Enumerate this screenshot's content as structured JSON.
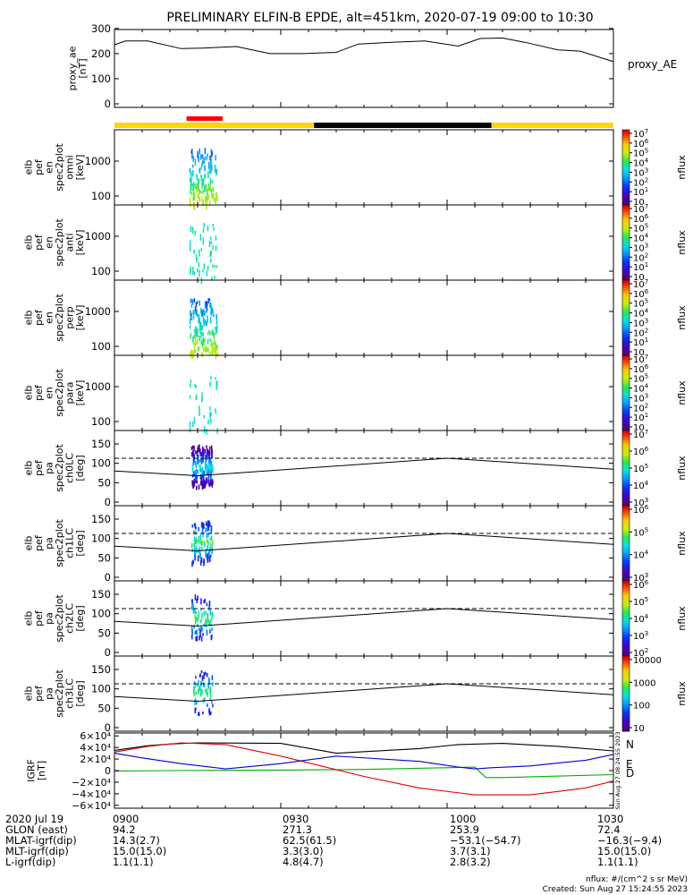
{
  "title": "PRELIMINARY ELFIN-B EPDE, alt=451km, 2020-07-19 09:00 to 10:30",
  "chart_data": [
    {
      "type": "line",
      "panel": "proxy_ae",
      "ylabel": "proxy_ae [nT]",
      "legend": "proxy_AE",
      "ylim": [
        0,
        310
      ],
      "yticks": [
        "0",
        "100",
        "200",
        "300"
      ],
      "x_minutes": [
        0,
        2,
        6,
        12,
        16,
        22,
        28,
        34,
        40,
        44,
        50,
        56,
        62,
        66,
        70,
        74,
        80,
        84,
        90
      ],
      "values": [
        235,
        250,
        250,
        220,
        222,
        228,
        200,
        200,
        205,
        238,
        245,
        250,
        230,
        260,
        262,
        245,
        215,
        210,
        168
      ]
    },
    {
      "type": "bar",
      "panel": "status_bar",
      "segments": [
        {
          "start": 0,
          "end": 36,
          "color": "#ffd700"
        },
        {
          "start": 36,
          "end": 68,
          "color": "#000000"
        },
        {
          "start": 68,
          "end": 90,
          "color": "#ffd700"
        }
      ],
      "marker": {
        "start": 13,
        "end": 19.5,
        "color": "#ff0000"
      }
    },
    {
      "type": "heatmap",
      "panel": "spec-omni",
      "ylabel": [
        "elb",
        "pef",
        "en",
        "spec2plot",
        "omni",
        "[keV]"
      ],
      "yticks": [
        "100",
        "1000"
      ],
      "scale": "log",
      "colorbar": {
        "label": "nflux",
        "ticks": [
          "10",
          "10^1",
          "10^2",
          "10^3",
          "10^4",
          "10^5",
          "10^6",
          "10^7"
        ]
      },
      "active_interval_minutes": [
        13.5,
        18.5
      ]
    },
    {
      "type": "heatmap",
      "panel": "spec-anti",
      "ylabel": [
        "elb",
        "pef",
        "en",
        "spec2plot",
        "anti",
        "[keV]"
      ],
      "yticks": [
        "100",
        "1000"
      ],
      "scale": "log",
      "colorbar": {
        "label": "nflux",
        "ticks": [
          "10",
          "10^1",
          "10^2",
          "10^3",
          "10^4",
          "10^5",
          "10^6",
          "10^7"
        ]
      },
      "active_interval_minutes": [
        13.5,
        18.5
      ]
    },
    {
      "type": "heatmap",
      "panel": "spec-perp",
      "ylabel": [
        "elb",
        "pef",
        "en",
        "spec2plot",
        "perp",
        "[keV]"
      ],
      "yticks": [
        "100",
        "1000"
      ],
      "scale": "log",
      "colorbar": {
        "label": "nflux",
        "ticks": [
          "10",
          "10^1",
          "10^2",
          "10^3",
          "10^4",
          "10^5",
          "10^6",
          "10^7"
        ]
      },
      "active_interval_minutes": [
        13.5,
        18.5
      ]
    },
    {
      "type": "heatmap",
      "panel": "spec-para",
      "ylabel": [
        "elb",
        "pef",
        "en",
        "spec2plot",
        "para",
        "[keV]"
      ],
      "yticks": [
        "100",
        "1000"
      ],
      "scale": "log",
      "colorbar": {
        "label": "nflux",
        "ticks": [
          "10",
          "10^1",
          "10^2",
          "10^3",
          "10^4",
          "10^5",
          "10^6",
          "10^7"
        ]
      },
      "active_interval_minutes": [
        13.5,
        18.5
      ]
    },
    {
      "type": "heatmap",
      "panel": "pa-ch0",
      "ylabel": [
        "elb",
        "pef",
        "pa",
        "spec2plot",
        "ch0LC",
        "[deg]"
      ],
      "yticks": [
        "0",
        "50",
        "100",
        "150"
      ],
      "ylim": [
        0,
        180
      ],
      "colorbar": {
        "label": "nflux",
        "ticks": [
          "10^3",
          "10^4",
          "10^5",
          "10^6",
          "10^7"
        ]
      },
      "lc_dashed": 113,
      "lc_solid": [
        {
          "x": 0,
          "y": 80
        },
        {
          "x": 15,
          "y": 68
        },
        {
          "x": 60,
          "y": 113
        },
        {
          "x": 90,
          "y": 85
        }
      ]
    },
    {
      "type": "heatmap",
      "panel": "pa-ch1",
      "ylabel": [
        "elb",
        "pef",
        "pa",
        "spec2plot",
        "ch1LC",
        "[deg]"
      ],
      "yticks": [
        "0",
        "50",
        "100",
        "150"
      ],
      "ylim": [
        0,
        180
      ],
      "colorbar": {
        "label": "nflux",
        "ticks": [
          "10^3",
          "10^4",
          "10^5",
          "10^6"
        ]
      },
      "lc_dashed": 113,
      "lc_solid": [
        {
          "x": 0,
          "y": 80
        },
        {
          "x": 15,
          "y": 68
        },
        {
          "x": 60,
          "y": 113
        },
        {
          "x": 90,
          "y": 85
        }
      ]
    },
    {
      "type": "heatmap",
      "panel": "pa-ch2",
      "ylabel": [
        "elb",
        "pef",
        "pa",
        "spec2plot",
        "ch2LC",
        "[deg]"
      ],
      "yticks": [
        "0",
        "50",
        "100",
        "150"
      ],
      "ylim": [
        0,
        180
      ],
      "colorbar": {
        "label": "nflux",
        "ticks": [
          "10^2",
          "10^3",
          "10^4",
          "10^5",
          "10^6"
        ]
      },
      "lc_dashed": 113,
      "lc_solid": [
        {
          "x": 0,
          "y": 80
        },
        {
          "x": 15,
          "y": 68
        },
        {
          "x": 60,
          "y": 113
        },
        {
          "x": 90,
          "y": 85
        }
      ]
    },
    {
      "type": "heatmap",
      "panel": "pa-ch3",
      "ylabel": [
        "elb",
        "pef",
        "pa",
        "spec2plot",
        "ch3LC",
        "[deg]"
      ],
      "yticks": [
        "0",
        "50",
        "100",
        "150"
      ],
      "ylim": [
        0,
        180
      ],
      "colorbar": {
        "label": "nflux",
        "ticks": [
          "10",
          "100",
          "1000",
          "10000"
        ]
      },
      "lc_dashed": 113,
      "lc_solid": [
        {
          "x": 0,
          "y": 80
        },
        {
          "x": 15,
          "y": 68
        },
        {
          "x": 60,
          "y": 113
        },
        {
          "x": 90,
          "y": 85
        }
      ]
    },
    {
      "type": "line",
      "panel": "igrf",
      "ylabel": "IGRF [nT]",
      "ylim": [
        -65000,
        65000
      ],
      "yticks": [
        "6×10⁴",
        "4×10⁴",
        "2×10⁴",
        "0",
        "−2×10⁴",
        "−4×10⁴",
        "−6×10⁴"
      ],
      "side_text": "Sun Aug 27 08:24:55 2023",
      "series": [
        {
          "name": "N",
          "color": "#000000",
          "x": [
            0,
            6,
            10,
            15,
            30,
            40,
            55,
            62,
            70,
            80,
            90
          ],
          "y": [
            35000,
            43000,
            46000,
            48000,
            47000,
            30000,
            38000,
            45000,
            47000,
            42000,
            34000
          ]
        },
        {
          "name": "E",
          "color": "#00b000",
          "x": [
            0,
            10,
            30,
            45,
            65,
            67,
            70,
            90
          ],
          "y": [
            -1000,
            0,
            1000,
            2000,
            6000,
            -12000,
            -12000,
            -7000
          ]
        },
        {
          "name": "D",
          "color": "#e00000",
          "x": [
            0,
            6,
            12,
            20,
            30,
            45,
            55,
            65,
            75,
            85,
            90
          ],
          "y": [
            32000,
            42000,
            48000,
            45000,
            25000,
            -10000,
            -30000,
            -42000,
            -42000,
            -30000,
            -18000
          ]
        },
        {
          "name": "",
          "color": "#0000d0",
          "x": [
            0,
            5,
            12,
            20,
            30,
            40,
            55,
            62,
            65,
            68,
            75,
            85,
            90
          ],
          "y": [
            30000,
            22000,
            12000,
            3000,
            12000,
            25000,
            16000,
            6000,
            3000,
            5000,
            8000,
            18000,
            28000
          ]
        }
      ]
    }
  ],
  "footer": {
    "rows": [
      {
        "label": "2020 Jul 19",
        "values": [
          "0900",
          "0930",
          "1000",
          "1030"
        ]
      },
      {
        "label": "GLON (east)",
        "values": [
          "94.2",
          "271.3",
          "253.9",
          "72.4"
        ]
      },
      {
        "label": "MLAT-igrf(dip)",
        "values": [
          "14.3(2.7)",
          "62.5(61.5)",
          "−53.1(−54.7)",
          "−16.3(−9.4)"
        ]
      },
      {
        "label": "MLT-igrf(dip)",
        "values": [
          "15.0(15.0)",
          "3.3(3.0)",
          "3.7(3.1)",
          "15.0(15.0)"
        ]
      },
      {
        "label": "L-igrf(dip)",
        "values": [
          "1.1(1.1)",
          "4.8(4.7)",
          "2.8(3.2)",
          "1.1(1.1)"
        ]
      }
    ],
    "units_note": "nflux: #/(cm^2 s sr MeV)",
    "created": "Created: Sun Aug 27 15:24:55 2023"
  }
}
